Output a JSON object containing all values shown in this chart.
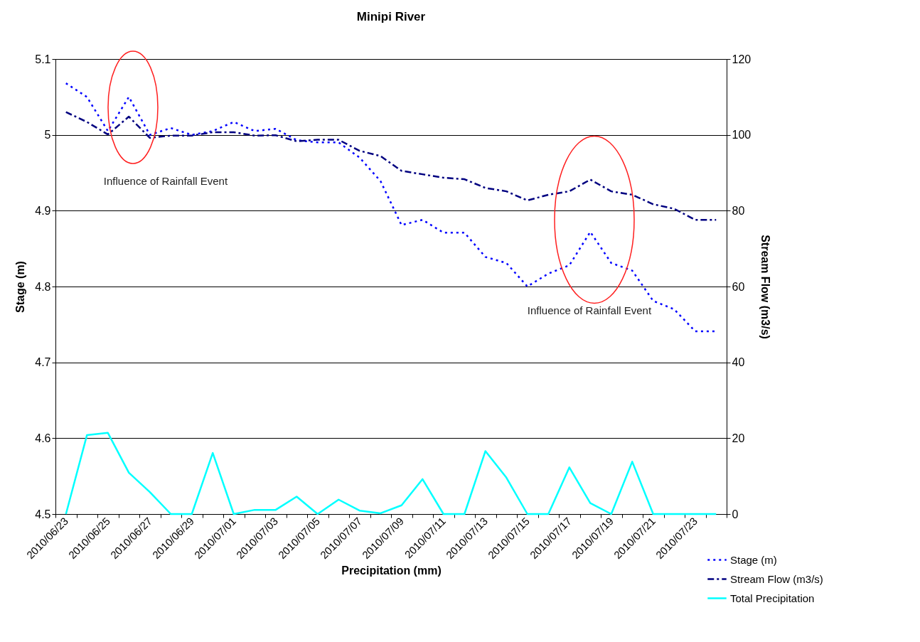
{
  "chart_data": {
    "type": "line",
    "title": "Minipi River",
    "xlabel": "Precipitation (mm)",
    "ylabel": "Stage (m)",
    "y2label": "Stream Flow (m3/s)",
    "categories": [
      "2010/06/23",
      null,
      "2010/06/25",
      null,
      "2010/06/27",
      null,
      "2010/06/29",
      null,
      "2010/07/01",
      null,
      "2010/07/03",
      null,
      "2010/07/05",
      null,
      "2010/07/07",
      null,
      "2010/07/09",
      null,
      "2010/07/11",
      null,
      "2010/07/13",
      null,
      "2010/07/15",
      null,
      "2010/07/17",
      null,
      "2010/07/19",
      null,
      "2010/07/21",
      null,
      "2010/07/23",
      null
    ],
    "series": [
      {
        "name": "Stage (m)",
        "color": "#0000ff",
        "line_style": "dotted",
        "values": [
          5.068,
          5.05,
          5.005,
          5.05,
          5.0,
          5.009,
          5.0,
          5.005,
          5.017,
          5.005,
          5.008,
          4.993,
          4.99,
          4.99,
          4.97,
          4.939,
          4.881,
          4.888,
          4.871,
          4.871,
          4.839,
          4.831,
          4.8,
          4.817,
          4.828,
          4.872,
          4.831,
          4.821,
          4.781,
          4.77,
          4.741,
          4.741
        ]
      },
      {
        "name": "Stream Flow (m3/s)",
        "color": "#000080",
        "line_style": "dashed",
        "axis": "y2",
        "values": [
          106.0,
          103.4,
          100.1,
          104.8,
          99.2,
          99.8,
          99.8,
          100.7,
          100.7,
          99.8,
          99.9,
          98.3,
          98.7,
          98.7,
          95.8,
          94.4,
          90.5,
          89.6,
          88.7,
          88.3,
          86.0,
          85.1,
          82.7,
          84.2,
          85.1,
          88.2,
          85.1,
          84.2,
          81.7,
          80.5,
          77.6,
          77.6
        ]
      },
      {
        "name": "Total Precipitation",
        "color": "#00ffff",
        "line_style": "solid",
        "axis": "y2",
        "values": [
          0,
          20.8,
          21.4,
          10.9,
          5.8,
          0,
          0,
          16.1,
          0,
          1.1,
          1.1,
          4.6,
          0,
          3.8,
          0.9,
          0.2,
          2.3,
          9.2,
          0,
          0,
          16.6,
          9.6,
          0,
          0,
          12.3,
          2.9,
          0,
          13.8,
          0,
          0,
          0,
          0
        ]
      }
    ],
    "ylim": [
      4.5,
      5.1
    ],
    "yticks": [
      4.5,
      4.6,
      4.7,
      4.8,
      4.9,
      5,
      5.1
    ],
    "y2lim": [
      0,
      120
    ],
    "y2ticks": [
      0,
      20,
      40,
      60,
      80,
      100,
      120
    ],
    "grid": "y",
    "legend": "bottom right",
    "marker": "none",
    "annotations": [
      "Influence of Rainfall Event",
      "Influence of Rainfall Event"
    ]
  }
}
